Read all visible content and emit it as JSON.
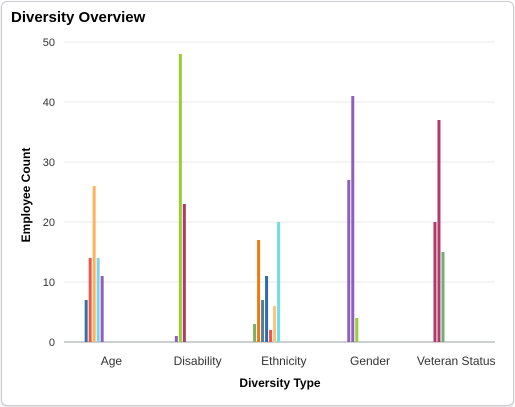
{
  "panel": {
    "title": "Diversity Overview"
  },
  "chart_data": {
    "type": "bar",
    "xlabel": "Diversity Type",
    "ylabel": "Employee Count",
    "ylim": [
      0,
      50
    ],
    "yticks": [
      0,
      10,
      20,
      30,
      40,
      50
    ],
    "grid": true,
    "legend": "none",
    "groups": [
      {
        "category": "Age",
        "bars": [
          {
            "value": 7,
            "color": "#3b6ea5"
          },
          {
            "value": 14,
            "color": "#e9594a"
          },
          {
            "value": 26,
            "color": "#ffb25c"
          },
          {
            "value": 14,
            "color": "#7fd3e8"
          },
          {
            "value": 11,
            "color": "#8f5fc0"
          }
        ]
      },
      {
        "category": "Disability",
        "bars": [
          {
            "value": 1,
            "color": "#8f5fc0"
          },
          {
            "value": 48,
            "color": "#9acd32"
          },
          {
            "value": 23,
            "color": "#b23a6b"
          }
        ]
      },
      {
        "category": "Ethnicity",
        "bars": [
          {
            "value": 3,
            "color": "#7fb069"
          },
          {
            "value": 17,
            "color": "#f07a12"
          },
          {
            "value": 7,
            "color": "#5a7d96"
          },
          {
            "value": 11,
            "color": "#2b6cb0"
          },
          {
            "value": 2,
            "color": "#e9594a"
          },
          {
            "value": 6,
            "color": "#ffc27a"
          },
          {
            "value": 20,
            "color": "#6fdfe6"
          }
        ]
      },
      {
        "category": "Gender",
        "bars": [
          {
            "value": 27,
            "color": "#8f5fc0"
          },
          {
            "value": 41,
            "color": "#8f5fc0"
          },
          {
            "value": 4,
            "color": "#9acd32"
          }
        ]
      },
      {
        "category": "Veteran Status",
        "bars": [
          {
            "value": 20,
            "color": "#b23a6b"
          },
          {
            "value": 37,
            "color": "#b23a6b"
          },
          {
            "value": 15,
            "color": "#6fae7a"
          }
        ]
      }
    ]
  }
}
